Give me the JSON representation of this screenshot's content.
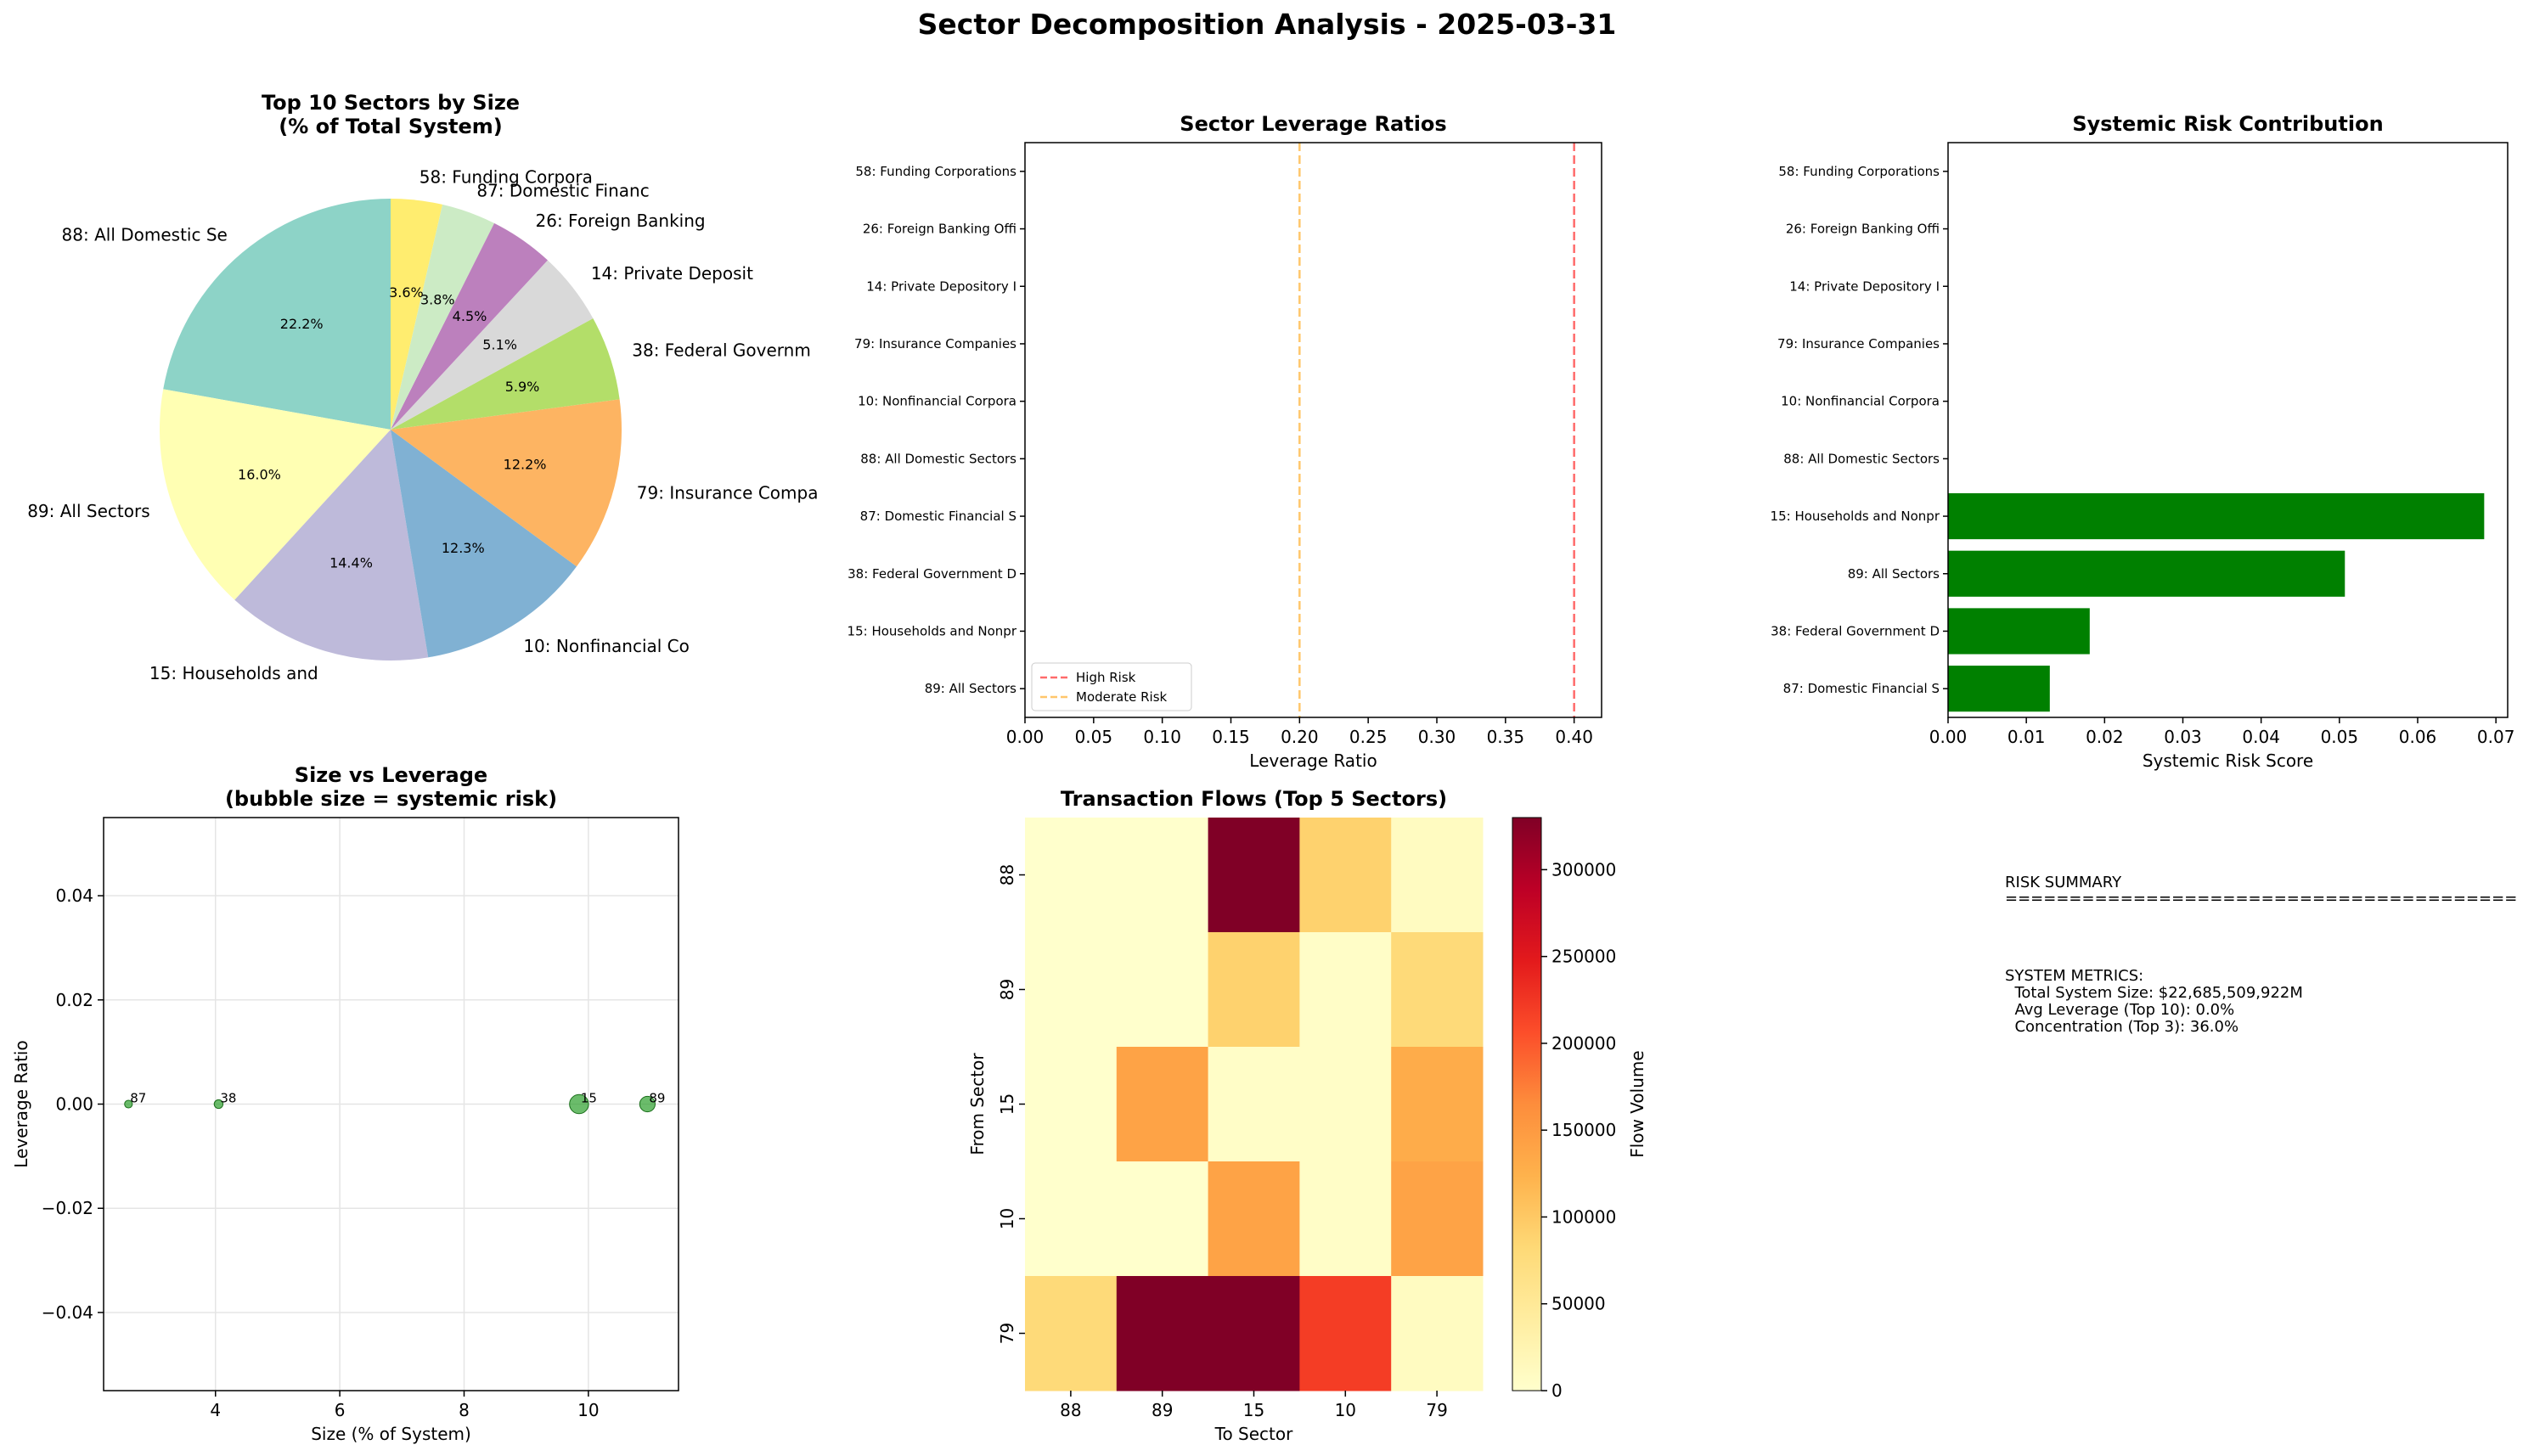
{
  "figure": {
    "title": "Sector Decomposition Analysis - 2025-03-31"
  },
  "chart_data": [
    {
      "type": "pie",
      "title": "Top 10 Sectors by Size\n(% of Total System)",
      "labels": [
        "88: All Domestic Se",
        "89: All Sectors",
        "15: Households and",
        "10: Nonfinancial Co",
        "79: Insurance Compa",
        "38: Federal Governm",
        "14: Private Deposit",
        "26: Foreign Banking",
        "87: Domestic Financ",
        "58: Funding Corpora"
      ],
      "values": [
        22.2,
        16.0,
        14.4,
        12.3,
        12.2,
        5.9,
        5.1,
        4.5,
        3.8,
        3.6
      ],
      "value_labels": [
        "22.2%",
        "16.0%",
        "14.4%",
        "12.3%",
        "12.2%",
        "5.9%",
        "5.1%",
        "4.5%",
        "3.8%",
        "3.6%"
      ],
      "colors": [
        "#8dd3c7",
        "#ffffb3",
        "#bebada",
        "#80b1d3",
        "#fdb462",
        "#b3de69",
        "#d9d9d9",
        "#bc80bd",
        "#ccebc5",
        "#ffed6f"
      ],
      "start_angle": 90,
      "direction": "counterclockwise"
    },
    {
      "type": "bar",
      "orientation": "horizontal",
      "title": "Sector Leverage Ratios",
      "categories": [
        "58: Funding Corporations",
        "26: Foreign Banking Offi",
        "14: Private Depository I",
        "79: Insurance Companies",
        "10: Nonfinancial Corpora",
        "88: All Domestic Sectors",
        "87: Domestic Financial S",
        "38: Federal Government D",
        "15: Households and Nonpr",
        "89: All Sectors"
      ],
      "values": [
        0,
        0,
        0,
        0,
        0,
        0,
        0,
        0,
        0,
        0
      ],
      "xlabel": "Leverage Ratio",
      "xlim": [
        0,
        0.42
      ],
      "xticks": [
        0.0,
        0.05,
        0.1,
        0.15,
        0.2,
        0.25,
        0.3,
        0.35,
        0.4
      ],
      "xtick_labels": [
        "0.00",
        "0.05",
        "0.10",
        "0.15",
        "0.20",
        "0.25",
        "0.30",
        "0.35",
        "0.40"
      ],
      "reference_lines": [
        {
          "name": "High Risk",
          "x": 0.4,
          "color": "#ff6b6b"
        },
        {
          "name": "Moderate Risk",
          "x": 0.2,
          "color": "#ffc66b"
        }
      ],
      "legend": "lower-left"
    },
    {
      "type": "bar",
      "orientation": "horizontal",
      "title": "Systemic Risk Contribution",
      "categories": [
        "58: Funding Corporations",
        "26: Foreign Banking Offi",
        "14: Private Depository I",
        "79: Insurance Companies",
        "10: Nonfinancial Corpora",
        "88: All Domestic Sectors",
        "15: Households and Nonpr",
        "89: All Sectors",
        "38: Federal Government D",
        "87: Domestic Financial S"
      ],
      "values": [
        0,
        0,
        0,
        0,
        0,
        0,
        0.0685,
        0.0507,
        0.0181,
        0.013
      ],
      "color": "#008000",
      "xlabel": "Systemic Risk Score",
      "xlim": [
        0,
        0.0715
      ],
      "xticks": [
        0,
        0.01,
        0.02,
        0.03,
        0.04,
        0.05,
        0.06,
        0.07
      ],
      "xtick_labels": [
        "0.00",
        "0.01",
        "0.02",
        "0.03",
        "0.04",
        "0.05",
        "0.06",
        "0.07"
      ]
    },
    {
      "type": "scatter",
      "title": "Size vs Leverage\n(bubble size = systemic risk)",
      "xlabel": "Size (% of System)",
      "ylabel": "Leverage Ratio",
      "xlim": [
        2.2,
        11.45
      ],
      "ylim": [
        -0.055,
        0.055
      ],
      "xticks": [
        4,
        6,
        8,
        10
      ],
      "yticks": [
        -0.04,
        -0.02,
        0.0,
        0.02,
        0.04
      ],
      "ytick_labels": [
        "−0.04",
        "−0.02",
        "0.00",
        "0.02",
        "0.04"
      ],
      "grid": true,
      "color": "#2ca02c",
      "points": [
        {
          "label": "87",
          "x": 2.6,
          "y": 0.0,
          "risk": 0.013
        },
        {
          "label": "38",
          "x": 4.05,
          "y": 0.0,
          "risk": 0.0181
        },
        {
          "label": "15",
          "x": 9.85,
          "y": 0.0,
          "risk": 0.0685
        },
        {
          "label": "89",
          "x": 10.95,
          "y": 0.0,
          "risk": 0.0507
        }
      ]
    },
    {
      "type": "heatmap",
      "title": "Transaction Flows (Top 5 Sectors)",
      "xlabel": "To Sector",
      "ylabel": "From Sector",
      "x_categories": [
        "88",
        "89",
        "15",
        "10",
        "79"
      ],
      "y_categories": [
        "88",
        "89",
        "15",
        "10",
        "79"
      ],
      "values": [
        [
          0,
          0,
          330000,
          90000,
          10000
        ],
        [
          0,
          0,
          90000,
          5000,
          80000
        ],
        [
          0,
          140000,
          5000,
          5000,
          130000
        ],
        [
          0,
          0,
          140000,
          5000,
          140000
        ],
        [
          80000,
          330000,
          330000,
          220000,
          10000
        ]
      ],
      "colorbar_label": "Flow Volume",
      "colorbar_range": [
        0,
        330000
      ],
      "colorbar_ticks": [
        0,
        50000,
        100000,
        150000,
        200000,
        250000,
        300000
      ],
      "colormap": "YlOrRd"
    }
  ],
  "summary": {
    "lines": [
      "RISK SUMMARY",
      "========================================",
      "",
      "",
      "SYSTEM METRICS:",
      "  Total System Size: $22,685,509,922M",
      "  Avg Leverage (Top 10): 0.0%",
      "  Concentration (Top 3): 36.0%"
    ]
  }
}
